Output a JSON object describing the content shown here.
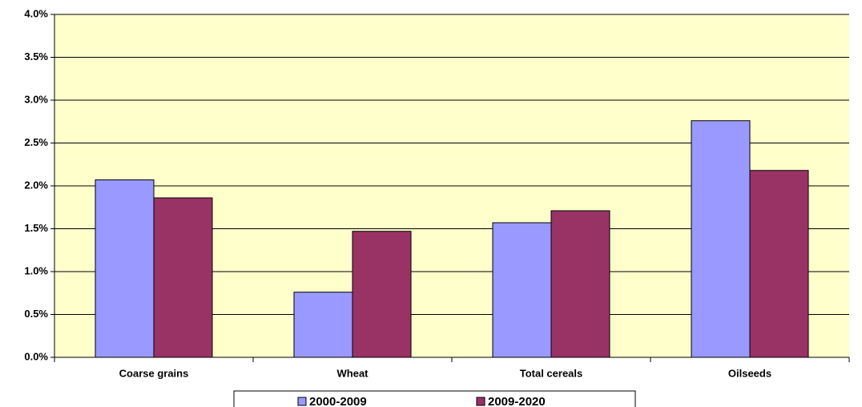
{
  "chart_data": {
    "type": "bar",
    "categories": [
      "Coarse grains",
      "Wheat",
      "Total cereals",
      "Oilseeds"
    ],
    "series": [
      {
        "name": "2000-2009",
        "color": "#9999ff",
        "values": [
          2.07,
          0.76,
          1.57,
          2.76
        ]
      },
      {
        "name": "2009-2020",
        "color": "#993366",
        "values": [
          1.86,
          1.47,
          1.71,
          2.18
        ]
      }
    ],
    "ylim": [
      0,
      4
    ],
    "yticks": [
      {
        "value": 0,
        "label": "0.0%"
      },
      {
        "value": 0.5,
        "label": "0.5%"
      },
      {
        "value": 1,
        "label": "1.0%"
      },
      {
        "value": 1.5,
        "label": "1.5%"
      },
      {
        "value": 2,
        "label": "2.0%"
      },
      {
        "value": 2.5,
        "label": "2.5%"
      },
      {
        "value": 3,
        "label": "3.0%"
      },
      {
        "value": 3.5,
        "label": "3.5%"
      },
      {
        "value": 4,
        "label": "4.0%"
      }
    ],
    "grid": true,
    "legend": "bottom"
  }
}
